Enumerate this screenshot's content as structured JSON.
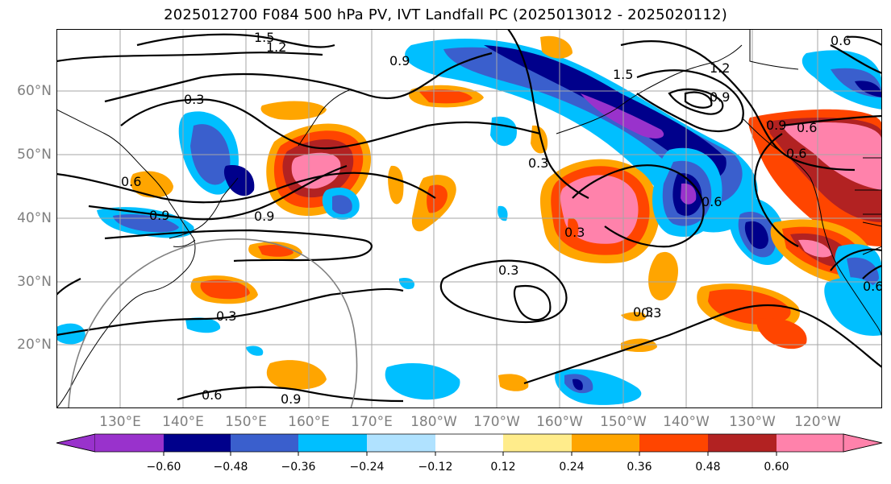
{
  "title": "2025012700 F084 500 hPa PV, IVT Landfall PC (2025013012 - 2025020112)",
  "lat_labels": [
    "60°N",
    "50°N",
    "40°N",
    "30°N",
    "20°N"
  ],
  "lon_labels": [
    "130°E",
    "140°E",
    "150°E",
    "160°E",
    "170°E",
    "180°W",
    "170°W",
    "160°W",
    "150°W",
    "140°W",
    "130°W",
    "120°W"
  ],
  "colorbar": {
    "colors": [
      "#9932cc",
      "#00008b",
      "#3a5fcd",
      "#00bfff",
      "#b0e2ff",
      "#ffffff",
      "#ffec8b",
      "#ffa500",
      "#ff4500",
      "#b22222",
      "#ff82ab"
    ],
    "ticks": [
      "−0.60",
      "−0.48",
      "−0.36",
      "−0.24",
      "−0.12",
      "0.12",
      "0.24",
      "0.36",
      "0.48",
      "0.60"
    ]
  },
  "contour_labels": [
    "1.5",
    "1.2",
    "0.9",
    "0.3",
    "0.6",
    "0.9",
    "0.9",
    "0.3",
    "0.3",
    "0.6",
    "0.9",
    "0.3",
    "0.3",
    "0.3",
    "0.3",
    "1.2",
    "0.9",
    "0.6",
    "0.6",
    "1.5",
    "0.6",
    "0.6",
    "0.9",
    "0.6"
  ]
}
